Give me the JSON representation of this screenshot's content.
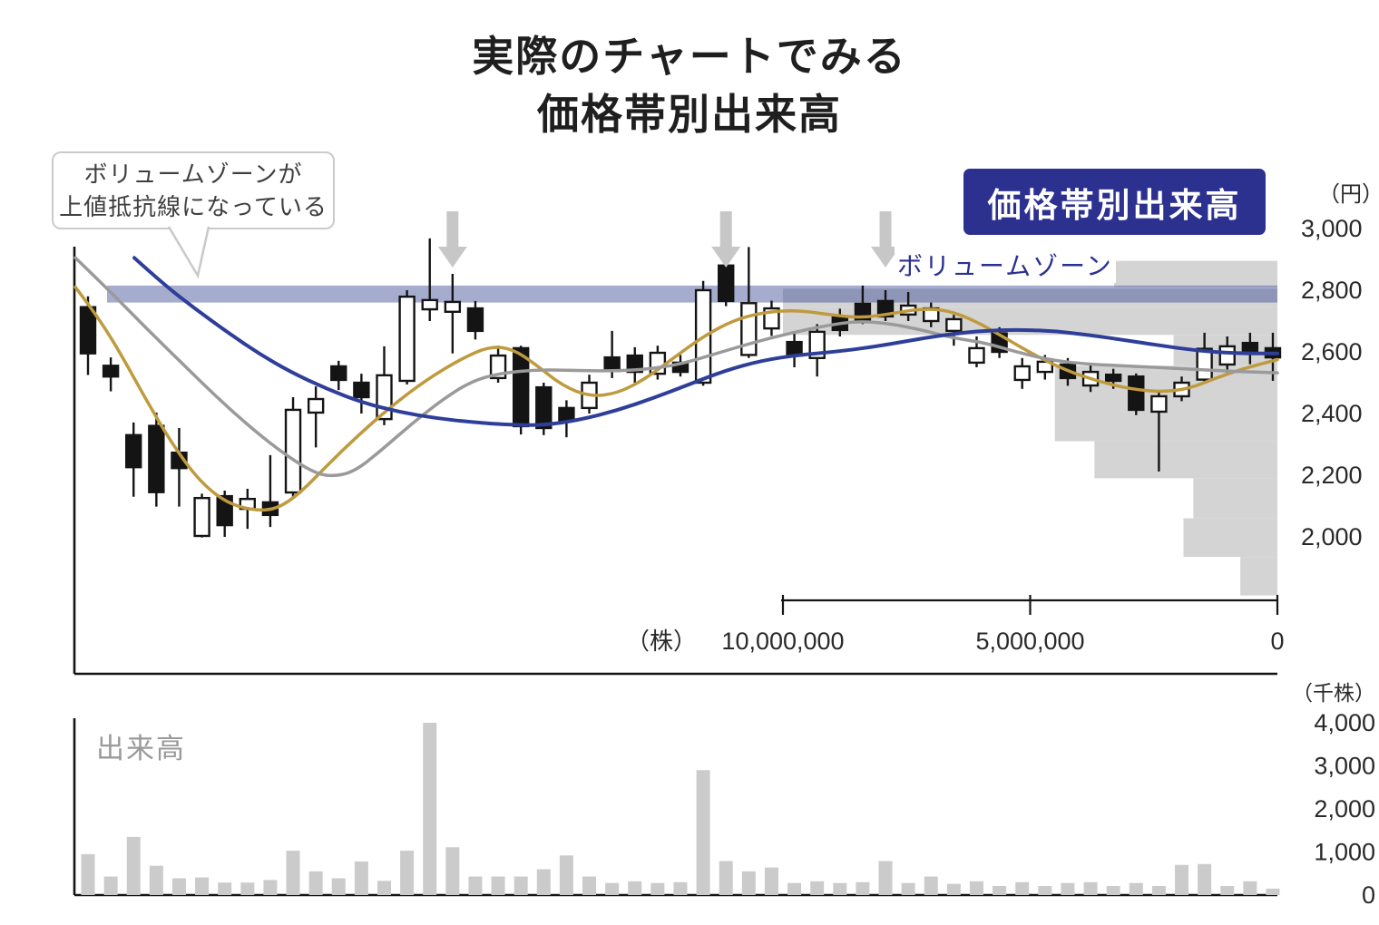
{
  "title": {
    "line1": "実際のチャートでみる",
    "line2": "価格帯別出来高"
  },
  "callout": {
    "line1": "ボリュームゾーンが",
    "line2": "上値抵抗線になっている"
  },
  "badge": {
    "label": "価格帯別出来高"
  },
  "labels": {
    "volume_zone": "ボリュームゾーン",
    "volume_pane": "出来高",
    "price_unit": "（円）",
    "shares_unit": "（株）",
    "thousand_shares_unit": "（千株）"
  },
  "colors": {
    "accent_navy": "#2c3190",
    "band_fill": "rgba(62,74,148,0.46)",
    "candle_black": "#141414",
    "candle_white": "#ffffff",
    "ma_short": "#bf9a3e",
    "ma_mid": "#9a9a9a",
    "ma_long": "#2e3e99",
    "hist_gray": "#d4d4d4",
    "volume_bar_gray": "#cbcbcb",
    "arrow_gray": "#c7c7c7",
    "axis_ink": "#141414",
    "tick_text": "#2a2a2a"
  },
  "chart_data": [
    {
      "type": "candlestick",
      "name": "daily-price-chart",
      "ylabel": "円",
      "ylim": [
        1800,
        3000
      ],
      "y_ticks": [
        {
          "label": "3,000",
          "value": 3000
        },
        {
          "label": "2,800",
          "value": 2800
        },
        {
          "label": "2,600",
          "value": 2600
        },
        {
          "label": "2,400",
          "value": 2400
        },
        {
          "label": "2,200",
          "value": 2200
        },
        {
          "label": "2,000",
          "value": 2000
        }
      ],
      "volume_zone": {
        "price_range": [
          2760,
          2815
        ],
        "label": "ボリュームゾーン"
      },
      "arrows_at_periods": [
        16,
        28,
        35
      ],
      "ohlc": [
        [
          2745,
          2780,
          2525,
          2595
        ],
        [
          2555,
          2582,
          2472,
          2520
        ],
        [
          2330,
          2371,
          2130,
          2226
        ],
        [
          2360,
          2403,
          2098,
          2145
        ],
        [
          2273,
          2353,
          2098,
          2223
        ],
        [
          2003,
          2140,
          1998,
          2126
        ],
        [
          2132,
          2150,
          2000,
          2038
        ],
        [
          2091,
          2156,
          2026,
          2123
        ],
        [
          2112,
          2265,
          2032,
          2071
        ],
        [
          2144,
          2453,
          2127,
          2412
        ],
        [
          2403,
          2488,
          2290,
          2447
        ],
        [
          2553,
          2571,
          2476,
          2509
        ],
        [
          2500,
          2529,
          2400,
          2453
        ],
        [
          2382,
          2618,
          2362,
          2524
        ],
        [
          2506,
          2800,
          2494,
          2779
        ],
        [
          2738,
          2968,
          2700,
          2768
        ],
        [
          2730,
          2853,
          2595,
          2762
        ],
        [
          2741,
          2765,
          2640,
          2668
        ],
        [
          2515,
          2620,
          2500,
          2588
        ],
        [
          2612,
          2620,
          2332,
          2359
        ],
        [
          2485,
          2500,
          2330,
          2353
        ],
        [
          2418,
          2443,
          2323,
          2376
        ],
        [
          2418,
          2526,
          2400,
          2500
        ],
        [
          2582,
          2668,
          2515,
          2538
        ],
        [
          2588,
          2615,
          2500,
          2535
        ],
        [
          2529,
          2620,
          2510,
          2597
        ],
        [
          2565,
          2590,
          2520,
          2535
        ],
        [
          2500,
          2830,
          2490,
          2800
        ],
        [
          2880,
          2950,
          2748,
          2765
        ],
        [
          2590,
          2940,
          2580,
          2758
        ],
        [
          2676,
          2766,
          2652,
          2741
        ],
        [
          2632,
          2662,
          2550,
          2588
        ],
        [
          2580,
          2690,
          2520,
          2665
        ],
        [
          2712,
          2740,
          2650,
          2671
        ],
        [
          2756,
          2815,
          2690,
          2700
        ],
        [
          2765,
          2800,
          2700,
          2715
        ],
        [
          2721,
          2794,
          2700,
          2750
        ],
        [
          2700,
          2760,
          2680,
          2741
        ],
        [
          2668,
          2720,
          2620,
          2706
        ],
        [
          2565,
          2650,
          2550,
          2612
        ],
        [
          2660,
          2680,
          2580,
          2600
        ],
        [
          2509,
          2580,
          2480,
          2553
        ],
        [
          2535,
          2590,
          2510,
          2568
        ],
        [
          2559,
          2580,
          2490,
          2515
        ],
        [
          2491,
          2560,
          2470,
          2535
        ],
        [
          2526,
          2545,
          2480,
          2506
        ],
        [
          2520,
          2530,
          2395,
          2412
        ],
        [
          2406,
          2470,
          2212,
          2456
        ],
        [
          2456,
          2520,
          2440,
          2500
        ],
        [
          2510,
          2662,
          2500,
          2610
        ],
        [
          2559,
          2650,
          2530,
          2618
        ],
        [
          2629,
          2662,
          2560,
          2600
        ],
        [
          2612,
          2662,
          2506,
          2582
        ]
      ],
      "moving_averages": [
        {
          "name": "short-term",
          "color": "#bf9a3e",
          "points": [
            [
              83,
              2810
            ],
            [
              105,
              2725
            ],
            [
              130,
              2610
            ],
            [
              160,
              2450
            ],
            [
              190,
              2300
            ],
            [
              220,
              2180
            ],
            [
              250,
              2110
            ],
            [
              280,
              2085
            ],
            [
              305,
              2090
            ],
            [
              330,
              2140
            ],
            [
              360,
              2230
            ],
            [
              395,
              2330
            ],
            [
              430,
              2420
            ],
            [
              470,
              2510
            ],
            [
              510,
              2580
            ],
            [
              540,
              2618
            ],
            [
              565,
              2610
            ],
            [
              590,
              2560
            ],
            [
              620,
              2490
            ],
            [
              650,
              2455
            ],
            [
              680,
              2465
            ],
            [
              710,
              2510
            ],
            [
              740,
              2575
            ],
            [
              775,
              2650
            ],
            [
              810,
              2705
            ],
            [
              845,
              2730
            ],
            [
              880,
              2735
            ],
            [
              915,
              2720
            ],
            [
              950,
              2710
            ],
            [
              985,
              2725
            ],
            [
              1015,
              2740
            ],
            [
              1045,
              2735
            ],
            [
              1075,
              2700
            ],
            [
              1105,
              2650
            ],
            [
              1140,
              2590
            ],
            [
              1175,
              2540
            ],
            [
              1210,
              2505
            ],
            [
              1245,
              2480
            ],
            [
              1280,
              2470
            ],
            [
              1310,
              2480
            ],
            [
              1340,
              2515
            ],
            [
              1370,
              2545
            ],
            [
              1408,
              2575
            ]
          ]
        },
        {
          "name": "medium-term",
          "color": "#9a9a9a",
          "points": [
            [
              83,
              2905
            ],
            [
              120,
              2800
            ],
            [
              160,
              2680
            ],
            [
              200,
              2565
            ],
            [
              240,
              2450
            ],
            [
              280,
              2345
            ],
            [
              315,
              2265
            ],
            [
              345,
              2210
            ],
            [
              365,
              2195
            ],
            [
              390,
              2210
            ],
            [
              420,
              2280
            ],
            [
              455,
              2370
            ],
            [
              490,
              2450
            ],
            [
              520,
              2505
            ],
            [
              550,
              2530
            ],
            [
              590,
              2542
            ],
            [
              630,
              2540
            ],
            [
              670,
              2538
            ],
            [
              710,
              2542
            ],
            [
              750,
              2560
            ],
            [
              790,
              2595
            ],
            [
              830,
              2630
            ],
            [
              870,
              2660
            ],
            [
              910,
              2685
            ],
            [
              945,
              2700
            ],
            [
              980,
              2692
            ],
            [
              1015,
              2672
            ],
            [
              1050,
              2645
            ],
            [
              1085,
              2630
            ],
            [
              1120,
              2600
            ],
            [
              1160,
              2572
            ],
            [
              1200,
              2560
            ],
            [
              1250,
              2553
            ],
            [
              1300,
              2546
            ],
            [
              1350,
              2538
            ],
            [
              1408,
              2532
            ]
          ]
        },
        {
          "name": "long-term",
          "color": "#2e3e99",
          "points": [
            [
              148,
              2905
            ],
            [
              180,
              2820
            ],
            [
              215,
              2740
            ],
            [
              250,
              2665
            ],
            [
              285,
              2595
            ],
            [
              320,
              2535
            ],
            [
              360,
              2480
            ],
            [
              400,
              2435
            ],
            [
              440,
              2405
            ],
            [
              480,
              2385
            ],
            [
              520,
              2372
            ],
            [
              560,
              2363
            ],
            [
              600,
              2362
            ],
            [
              640,
              2380
            ],
            [
              680,
              2410
            ],
            [
              720,
              2450
            ],
            [
              760,
              2495
            ],
            [
              800,
              2540
            ],
            [
              840,
              2572
            ],
            [
              880,
              2590
            ],
            [
              920,
              2600
            ],
            [
              960,
              2615
            ],
            [
              1000,
              2635
            ],
            [
              1040,
              2655
            ],
            [
              1080,
              2668
            ],
            [
              1120,
              2672
            ],
            [
              1160,
              2668
            ],
            [
              1200,
              2655
            ],
            [
              1240,
              2638
            ],
            [
              1280,
              2620
            ],
            [
              1320,
              2604
            ],
            [
              1360,
              2595
            ],
            [
              1408,
              2595
            ]
          ]
        }
      ]
    },
    {
      "type": "bar",
      "name": "volume-by-price",
      "orientation": "horizontal",
      "xlabel": "株",
      "xlim": [
        0,
        10000000
      ],
      "axis_reversed": true,
      "x_ticks": [
        {
          "label": "10,000,000",
          "value": 10000000
        },
        {
          "label": "5,000,000",
          "value": 5000000
        },
        {
          "label": "0",
          "value": 0
        }
      ],
      "rows": [
        {
          "price_top": 2895,
          "price_bottom": 2810,
          "shares": 3300000
        },
        {
          "price_top": 2805,
          "price_bottom": 2745,
          "shares": 10000000
        },
        {
          "price_top": 2745,
          "price_bottom": 2655,
          "shares": 10000000
        },
        {
          "price_top": 2655,
          "price_bottom": 2555,
          "shares": 2100000
        },
        {
          "price_top": 2555,
          "price_bottom": 2310,
          "shares": 4500000
        },
        {
          "price_top": 2310,
          "price_bottom": 2190,
          "shares": 3700000
        },
        {
          "price_top": 2190,
          "price_bottom": 2060,
          "shares": 1700000
        },
        {
          "price_top": 2060,
          "price_bottom": 1935,
          "shares": 1900000
        },
        {
          "price_top": 1935,
          "price_bottom": 1810,
          "shares": 750000
        }
      ]
    },
    {
      "type": "bar",
      "name": "volume",
      "label": "出来高",
      "ylabel": "千株",
      "ylim": [
        0,
        4000
      ],
      "y_ticks": [
        {
          "label": "4,000",
          "value": 4000
        },
        {
          "label": "3,000",
          "value": 3000
        },
        {
          "label": "2,000",
          "value": 2000
        },
        {
          "label": "1,000",
          "value": 1000
        },
        {
          "label": "0",
          "value": 0
        }
      ],
      "values": [
        950,
        430,
        1350,
        680,
        390,
        410,
        290,
        290,
        350,
        1030,
        550,
        390,
        780,
        330,
        1030,
        4000,
        1110,
        430,
        430,
        430,
        600,
        920,
        430,
        280,
        320,
        280,
        300,
        2900,
        790,
        550,
        640,
        280,
        320,
        280,
        300,
        790,
        280,
        430,
        260,
        320,
        210,
        300,
        210,
        280,
        300,
        210,
        280,
        210,
        700,
        720,
        210,
        320,
        150
      ]
    }
  ]
}
